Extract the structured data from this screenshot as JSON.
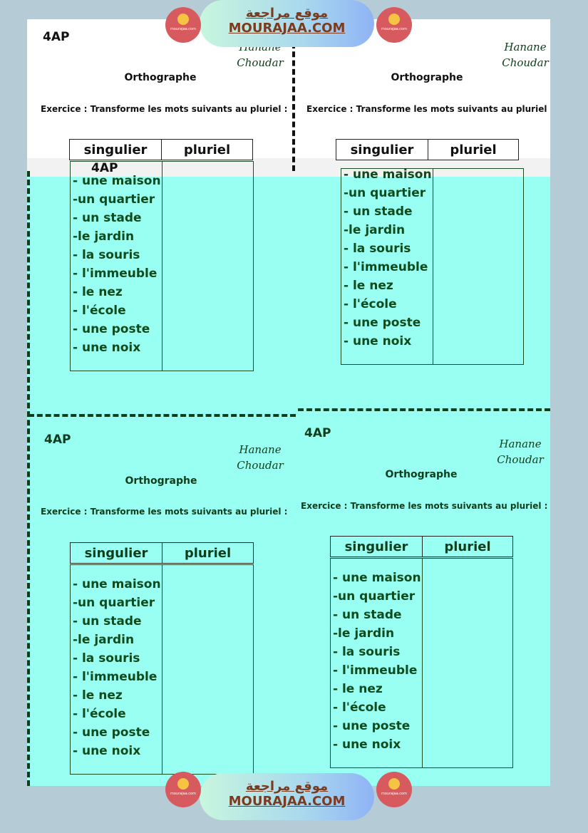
{
  "branding": {
    "arabic": "موقع مراجعة",
    "site": "MOURAJAA.COM",
    "logo_caption": "mourajaa.com",
    "colors": {
      "badge_text": "#7a3b1f",
      "circle": "#d75b5e"
    }
  },
  "colors": {
    "page": "#b5ccd6",
    "worksheet_bg": "#99fff2",
    "text": "#0d3d1a"
  },
  "worksheets": [
    {
      "level": "4AP",
      "subject": "Orthographe",
      "instruction": "Exercice :   Transforme les mots suivants au pluriel :",
      "signature": "Hanane Choudar",
      "headers": [
        "singulier",
        "pluriel"
      ],
      "words": [
        "- une maison",
        "-un quartier",
        "- un stade",
        "-le jardin",
        "- la souris",
        "- l'immeuble",
        "- le nez",
        "- l'école",
        "- une poste",
        "- une noix"
      ]
    },
    {
      "level": "4AP",
      "subject": "Orthographe",
      "instruction": "Exercice :   Transforme les mots suivants au pluriel",
      "signature": "Hanane Choudar",
      "headers": [
        "singulier",
        "pluriel"
      ],
      "words": [
        "- une maison",
        "-un quartier",
        "- un stade",
        "-le jardin",
        "- la souris",
        "- l'immeuble",
        "- le nez",
        "- l'école",
        "- une poste",
        "- une noix"
      ]
    },
    {
      "level": "4AP",
      "subject": "Orthographe",
      "instruction": "Exercice :   Transforme les mots suivants au pluriel :",
      "signature": "Hanane Choudar",
      "headers": [
        "singulier",
        "pluriel"
      ],
      "words": [
        "- une maison",
        "-un quartier",
        "- un stade",
        "-le jardin",
        "- la souris",
        "- l'immeuble",
        "- le nez",
        "- l'école",
        "- une poste",
        "- une noix"
      ]
    },
    {
      "level": "4AP",
      "subject": "Orthographe",
      "instruction": "Exercice :   Transforme les mots suivants au pluriel :",
      "signature": "Hanane Choudar",
      "headers": [
        "singulier",
        "pluriel"
      ],
      "words": [
        "- une maison",
        "-un quartier",
        "- un stade",
        "-le jardin",
        "- la souris",
        "- l'immeuble",
        "- le nez",
        "- l'école",
        "- une poste",
        "- une noix"
      ]
    }
  ]
}
